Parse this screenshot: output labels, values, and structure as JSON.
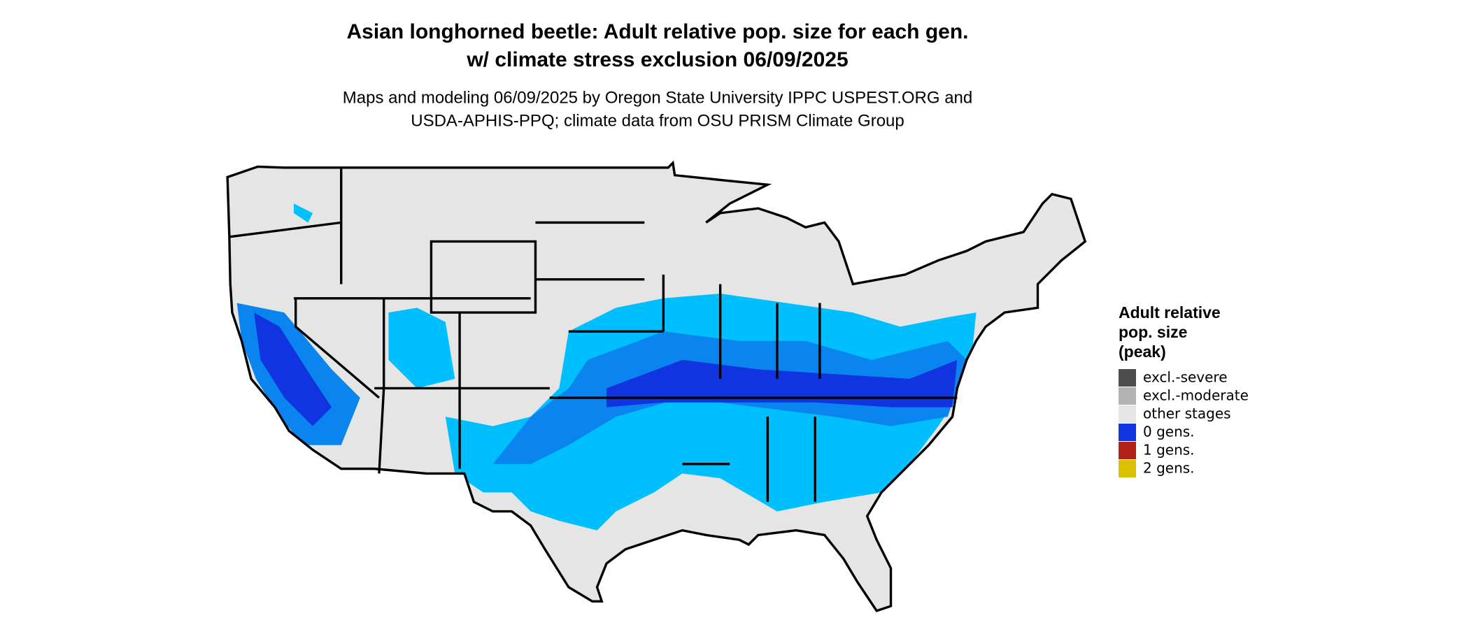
{
  "title": [
    "Asian longhorned beetle: Adult relative pop. size for each gen.",
    "w/ climate stress exclusion 06/09/2025"
  ],
  "subtitle": [
    "Maps and modeling 06/09/2025 by Oregon State University IPPC USPEST.ORG and",
    "USDA-APHIS-PPQ; climate data from OSU PRISM Climate Group"
  ],
  "legend": {
    "title": [
      "Adult relative",
      "pop. size",
      "(peak)"
    ],
    "items": [
      {
        "label": "excl.-severe",
        "color": "#4d4d4d"
      },
      {
        "label": "excl.-moderate",
        "color": "#b3b3b3"
      },
      {
        "label": "other stages",
        "color": "#e5e5e5"
      },
      {
        "label": "0 gens.",
        "color": "#1035e0"
      },
      {
        "label": "1 gens.",
        "color": "#b22218"
      },
      {
        "label": "2 gens.",
        "color": "#d9c000"
      }
    ]
  }
}
